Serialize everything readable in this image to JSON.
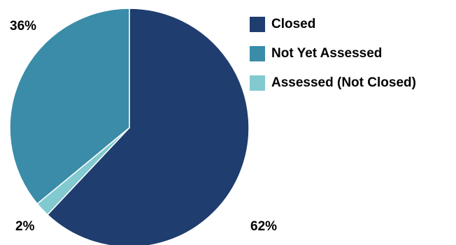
{
  "chart_data": {
    "type": "pie",
    "slices": [
      {
        "name": "Closed",
        "value": 62,
        "label": "62%",
        "color": "#1f3d6e"
      },
      {
        "name": "Assessed (Not Closed)",
        "value": 2,
        "label": "2%",
        "color": "#82c9d0"
      },
      {
        "name": "Not Yet Assessed",
        "value": 36,
        "label": "36%",
        "color": "#3a8ca8"
      }
    ],
    "legend": {
      "position": "right",
      "entries": [
        {
          "label": "Closed",
          "color": "#1f3d6e"
        },
        {
          "label": "Not Yet Assessed",
          "color": "#3a8ca8"
        },
        {
          "label": "Assessed (Not Closed)",
          "color": "#82c9d0"
        }
      ]
    },
    "start_angle": "12 o'clock",
    "direction": "clockwise"
  }
}
